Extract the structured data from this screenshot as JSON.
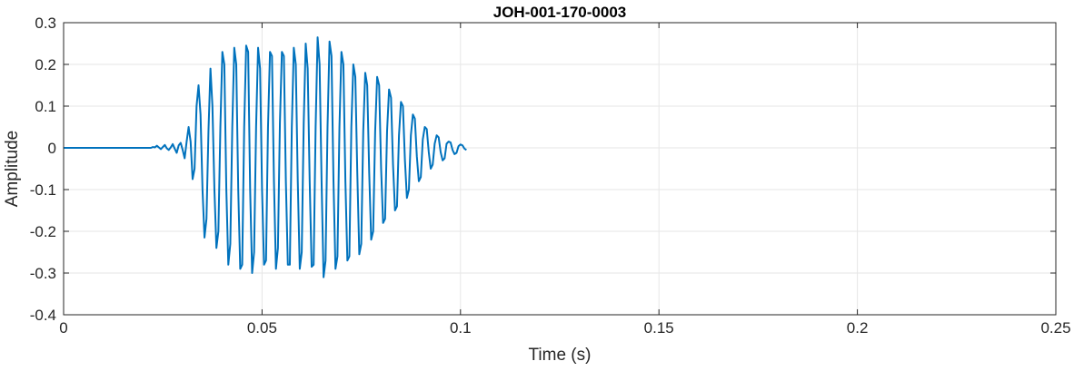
{
  "chart_data": {
    "type": "line",
    "title": "JOH-001-170-0003",
    "xlabel": "Time (s)",
    "ylabel": "Amplitude",
    "xlim": [
      0,
      0.25
    ],
    "ylim": [
      -0.4,
      0.3
    ],
    "grid": true,
    "xticks": [
      0,
      0.05,
      0.1,
      0.15,
      0.2,
      0.25
    ],
    "xtick_labels": [
      "0",
      "0.05",
      "0.1",
      "0.15",
      "0.2",
      "0.25"
    ],
    "yticks": [
      -0.4,
      -0.3,
      -0.2,
      -0.1,
      0,
      0.1,
      0.2,
      0.3
    ],
    "ytick_labels": [
      "-0.4",
      "-0.3",
      "-0.2",
      "-0.1",
      "0",
      "0.1",
      "0.2",
      "0.3"
    ],
    "series": [
      {
        "color": "#0072BD",
        "sample_interval_s": 0.0005,
        "x_start": 0,
        "y": [
          0,
          0,
          0,
          0,
          0,
          0,
          0,
          0,
          0,
          0,
          0,
          0,
          0,
          0,
          0,
          0,
          0,
          0,
          0,
          0,
          0,
          0,
          0,
          0,
          0,
          0,
          0,
          0,
          0,
          0,
          0,
          0,
          0,
          0,
          0,
          0,
          0,
          0,
          0,
          0,
          0,
          0,
          0,
          0,
          0,
          0.002,
          0.001,
          0.005,
          0.001,
          -0.003,
          0.002,
          0.007,
          -0.001,
          -0.005,
          0.001,
          0.009,
          -0.002,
          -0.012,
          0.006,
          0.012,
          -0.005,
          -0.025,
          0.015,
          0.05,
          0.015,
          -0.075,
          -0.05,
          0.1,
          0.15,
          0.08,
          -0.1,
          -0.215,
          -0.17,
          0.04,
          0.19,
          0.1,
          -0.1,
          -0.24,
          -0.2,
          0.05,
          0.23,
          0.2,
          -0.1,
          -0.28,
          -0.23,
          0.05,
          0.24,
          0.2,
          -0.1,
          -0.29,
          -0.28,
          0.05,
          0.245,
          0.23,
          -0.1,
          -0.3,
          -0.25,
          0.05,
          0.24,
          0.19,
          -0.1,
          -0.28,
          -0.27,
          0.05,
          0.23,
          0.22,
          -0.08,
          -0.29,
          -0.24,
          0.06,
          0.23,
          0.22,
          -0.08,
          -0.28,
          -0.28,
          0.05,
          0.24,
          0.2,
          -0.08,
          -0.29,
          -0.25,
          0.06,
          0.25,
          0.19,
          -0.08,
          -0.285,
          -0.28,
          0.05,
          0.265,
          0.2,
          -0.08,
          -0.31,
          -0.27,
          0.05,
          0.255,
          0.22,
          -0.08,
          -0.29,
          -0.26,
          0.05,
          0.23,
          0.2,
          -0.08,
          -0.27,
          -0.26,
          0.05,
          0.2,
          0.17,
          -0.06,
          -0.255,
          -0.23,
          0.04,
          0.18,
          0.15,
          -0.06,
          -0.22,
          -0.2,
          0.04,
          0.17,
          0.15,
          -0.05,
          -0.18,
          -0.17,
          0.04,
          0.14,
          0.12,
          -0.04,
          -0.15,
          -0.14,
          0.03,
          0.11,
          0.1,
          -0.03,
          -0.12,
          -0.1,
          0.03,
          0.08,
          0.07,
          -0.02,
          -0.08,
          -0.07,
          0.02,
          0.05,
          0.045,
          -0.01,
          -0.05,
          -0.04,
          0.01,
          0.03,
          0.025,
          -0.01,
          -0.03,
          -0.025,
          0.01,
          0.015,
          0.013,
          -0.005,
          -0.015,
          -0.012,
          0.004,
          0.008,
          0.006,
          -0.002,
          -0.005
        ]
      }
    ]
  }
}
